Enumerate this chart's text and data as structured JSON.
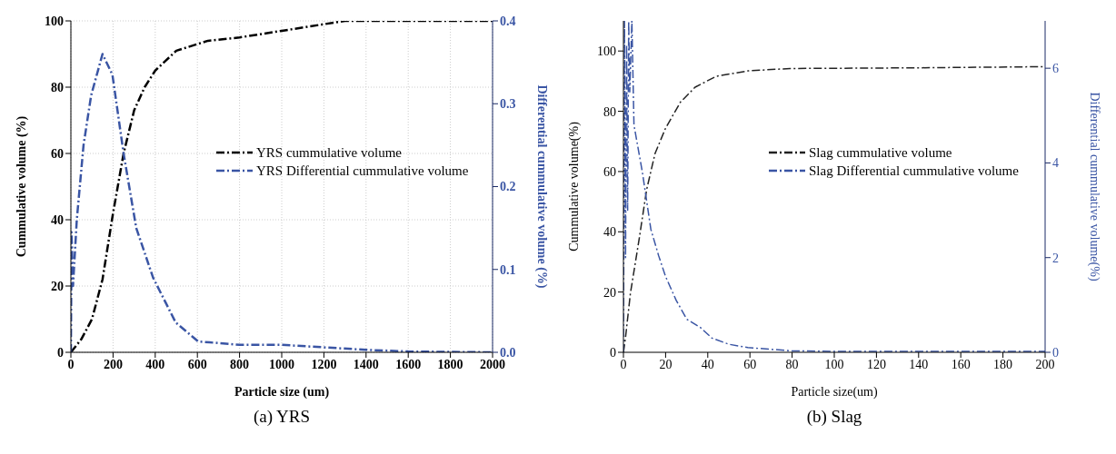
{
  "chart_data": [
    {
      "type": "line",
      "xlabel": "Particle size (um)",
      "ylabel": "Cummulative volume (%)",
      "y2label": "Differential cummulative volume (%)",
      "annotations": [
        "(a) YRS"
      ],
      "xlim": [
        0,
        2000
      ],
      "xticks": [
        0,
        200,
        400,
        600,
        800,
        1000,
        1200,
        1400,
        1600,
        1800,
        2000
      ],
      "ylim": [
        0,
        100
      ],
      "yticks": [
        0,
        20,
        40,
        60,
        80,
        100
      ],
      "y2lim": [
        0,
        0.4
      ],
      "y2ticks": [
        {
          "value": 0,
          "label": "0.0"
        },
        0.1,
        0.2,
        0.3,
        0.4
      ],
      "grid": true,
      "legend": "center",
      "line_style": "dashdot",
      "marker": "none",
      "series": [
        {
          "name": "YRS cummulative volume",
          "color": "#000000",
          "x": [
            0,
            50,
            100,
            150,
            200,
            250,
            300,
            350,
            400,
            500,
            650,
            800,
            1000,
            1200,
            1300,
            2000
          ],
          "values": [
            0,
            4,
            10,
            22,
            42,
            60,
            73,
            80,
            85,
            91,
            94,
            95,
            97,
            99,
            100,
            100
          ]
        },
        {
          "name": "YRS Differential cummulative volume",
          "color": "#3a55a4",
          "axis": "y2",
          "x": [
            0,
            3,
            10,
            28,
            60,
            96,
            150,
            197,
            250,
            310,
            390,
            497,
            604,
            658,
            800,
            1000,
            1200,
            1400,
            1600,
            2000
          ],
          "values": [
            0,
            0.145,
            0.08,
            0.16,
            0.25,
            0.31,
            0.36,
            0.335,
            0.24,
            0.15,
            0.09,
            0.036,
            0.013,
            0.012,
            0.009,
            0.009,
            0.006,
            0.003,
            0.001,
            0
          ]
        }
      ]
    },
    {
      "type": "line",
      "xlabel": "Particle size(um)",
      "ylabel": "Cummulative volume(%)",
      "y2label": "Differential cummulative volume(%)",
      "annotations": [
        "(b) Slag"
      ],
      "xlim": [
        0,
        200
      ],
      "xticks": [
        0,
        20,
        40,
        60,
        80,
        100,
        120,
        140,
        160,
        180,
        200
      ],
      "ylim": [
        0,
        110
      ],
      "yticks": [
        0,
        20,
        40,
        60,
        80,
        100
      ],
      "y2lim": [
        0,
        7
      ],
      "y2ticks": [
        0,
        2,
        4,
        6
      ],
      "legend": "center",
      "line_style": "dashdot",
      "marker": "none",
      "series": [
        {
          "name": "Slag cummulative volume",
          "color": "#222222",
          "x": [
            0,
            1,
            3.3,
            7.5,
            11,
            15,
            20,
            27,
            34,
            44,
            59,
            79,
            136,
            200
          ],
          "values": [
            0,
            5,
            19.5,
            37.8,
            54,
            66,
            74.4,
            83,
            88,
            91.6,
            93.4,
            94.2,
            94.4,
            94.8
          ]
        },
        {
          "name": "Slag Differential cummulative volume",
          "color": "#3a55a4",
          "axis": "y2",
          "x": [
            0,
            0.5,
            1,
            1.5,
            2,
            2.5,
            3,
            4,
            5,
            7,
            9,
            11,
            13,
            16.7,
            20,
            25,
            30,
            36.6,
            42,
            50,
            59,
            80,
            100,
            200
          ],
          "values": [
            0,
            7,
            2,
            6.5,
            3,
            7,
            5.5,
            7,
            4.8,
            4.3,
            3.8,
            3.2,
            2.6,
            2.04,
            1.6,
            1.1,
            0.7,
            0.52,
            0.3,
            0.17,
            0.1,
            0.03,
            0.02,
            0.02
          ]
        }
      ]
    }
  ]
}
